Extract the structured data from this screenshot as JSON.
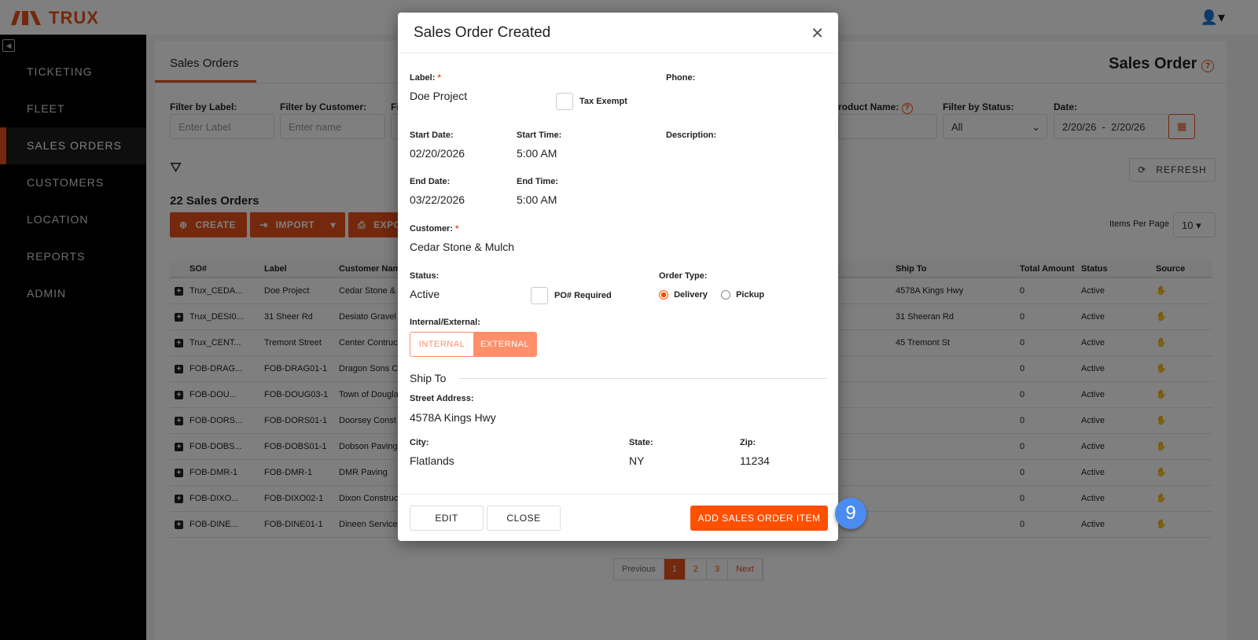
{
  "app": {
    "brand": "TRUX",
    "brand_color": "#e8501a"
  },
  "sidebar": {
    "items": [
      {
        "label": "TICKETING"
      },
      {
        "label": "FLEET"
      },
      {
        "label": "SALES ORDERS",
        "active": true
      },
      {
        "label": "CUSTOMERS"
      },
      {
        "label": "LOCATION"
      },
      {
        "label": "REPORTS"
      },
      {
        "label": "ADMIN"
      }
    ]
  },
  "page": {
    "tab": "Sales Orders",
    "title": "Sales Order",
    "count_label": "22 Sales Orders",
    "refresh": "REFRESH",
    "items_per_page_label": "Items Per Page",
    "items_per_page": "10"
  },
  "filters": {
    "label": {
      "label": "Filter by Label:",
      "placeholder": "Enter Label"
    },
    "customer": {
      "label": "Filter by Customer:",
      "placeholder": "Enter name"
    },
    "product_partial": "Fi",
    "product": {
      "label": "roduct Name:"
    },
    "status": {
      "label": "Filter by Status:",
      "value": "All"
    },
    "date": {
      "label": "Date:",
      "value": "2/20/26  -  2/20/26"
    }
  },
  "actions": {
    "create": "CREATE",
    "import": "IMPORT",
    "export": "EXPO"
  },
  "table": {
    "headers": [
      "SO#",
      "Label",
      "Customer Name",
      "Ship To",
      "Total Amount",
      "Status",
      "Source"
    ],
    "rows": [
      [
        "Trux_CEDA...",
        "Doe Project",
        "Cedar Stone &",
        "4578A Kings Hwy",
        "0",
        "Active"
      ],
      [
        "Trux_DESI0...",
        "31 Sheer Rd",
        "Desiato Gravel",
        "31 Sheeran Rd",
        "0",
        "Active"
      ],
      [
        "Trux_CENT...",
        "Tremont Street",
        "Center Contruc",
        "45 Tremont St",
        "0",
        "Active"
      ],
      [
        "FOB-DRAG...",
        "FOB-DRAG01-1",
        "Dragon Sons C",
        "",
        "0",
        "Active"
      ],
      [
        "FOB-DOU...",
        "FOB-DOUG03-1",
        "Town of Dougla",
        "",
        "0",
        "Active"
      ],
      [
        "FOB-DORS...",
        "FOB-DORS01-1",
        "Doorsey Const",
        "",
        "0",
        "Active"
      ],
      [
        "FOB-DOBS...",
        "FOB-DOBS01-1",
        "Dobson Paving",
        "",
        "0",
        "Active"
      ],
      [
        "FOB-DMR-1",
        "FOB-DMR-1",
        "DMR Paving",
        "",
        "0",
        "Active"
      ],
      [
        "FOB-DIXO...",
        "FOB-DIXO02-1",
        "Dixon Construc",
        "",
        "0",
        "Active"
      ],
      [
        "FOB-DINE...",
        "FOB-DINE01-1",
        "Dineen Service",
        "",
        "0",
        "Active"
      ]
    ]
  },
  "pagination": {
    "previous": "Previous",
    "pages": [
      "1",
      "2",
      "3"
    ],
    "current": "1",
    "next": "Next"
  },
  "modal": {
    "title": "Sales Order Created",
    "label_label": "Label:",
    "label_value": "Doe Project",
    "tax_exempt": "Tax Exempt",
    "phone_label": "Phone:",
    "start_date_label": "Start Date:",
    "start_date": "02/20/2026",
    "start_time_label": "Start Time:",
    "start_time": "5:00 AM",
    "description_label": "Description:",
    "end_date_label": "End Date:",
    "end_date": "03/22/2026",
    "end_time_label": "End Time:",
    "end_time": "5:00 AM",
    "customer_label": "Customer:",
    "customer": "Cedar Stone & Mulch",
    "status_label": "Status:",
    "status": "Active",
    "po_required": "PO# Required",
    "order_type_label": "Order Type:",
    "delivery": "Delivery",
    "pickup": "Pickup",
    "order_type": "Delivery",
    "int_ext_label": "Internal/External:",
    "internal": "INTERNAL",
    "external": "EXTERNAL",
    "int_ext": "EXTERNAL",
    "ship_to": "Ship To",
    "street_label": "Street Address:",
    "street": "4578A Kings Hwy",
    "city_label": "City:",
    "city": "Flatlands",
    "state_label": "State:",
    "state": "NY",
    "zip_label": "Zip:",
    "zip": "11234",
    "edit": "EDIT",
    "close": "CLOSE",
    "add_item": "ADD SALES ORDER ITEM"
  },
  "step_badge": "9"
}
